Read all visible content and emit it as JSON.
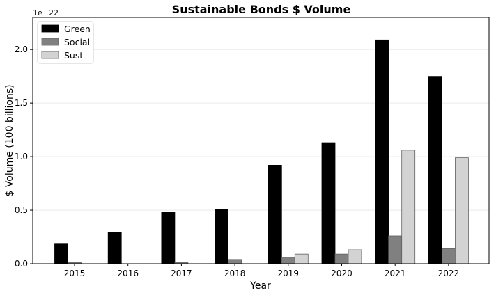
{
  "chart_data": {
    "type": "bar",
    "title": "Sustainable Bonds $ Volume",
    "xlabel": "Year",
    "ylabel": "$ Volume (100 billions)",
    "y_offset_text": "1e−22",
    "categories": [
      "2015",
      "2016",
      "2017",
      "2018",
      "2019",
      "2020",
      "2021",
      "2022"
    ],
    "ylim": [
      0,
      2.3
    ],
    "yticks": [
      0.0,
      0.5,
      1.0,
      1.5,
      2.0
    ],
    "ytick_labels": [
      "0.0",
      "0.5",
      "1.0",
      "1.5",
      "2.0"
    ],
    "grid": "horizontal, light",
    "legend_position": "top-left",
    "series": [
      {
        "name": "Green",
        "color": "#000000",
        "edge": "#000000",
        "values": [
          0.19,
          0.29,
          0.48,
          0.51,
          0.92,
          1.13,
          2.09,
          1.75
        ]
      },
      {
        "name": "Social",
        "color": "#808080",
        "edge": "#606060",
        "values": [
          0.01,
          0.0,
          0.01,
          0.04,
          0.06,
          0.09,
          0.26,
          0.14
        ]
      },
      {
        "name": "Sust",
        "color": "#d3d3d3",
        "edge": "#606060",
        "values": [
          0.0,
          0.0,
          0.0,
          0.0,
          0.09,
          0.13,
          1.06,
          0.99
        ]
      }
    ]
  }
}
